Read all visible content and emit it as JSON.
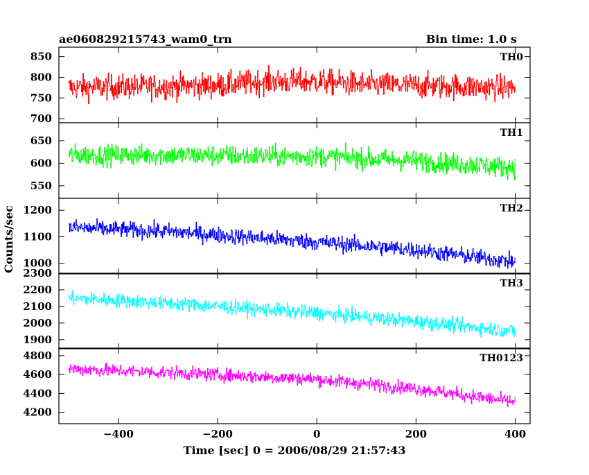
{
  "header": {
    "title": "ae060829215743_wam0_trn",
    "bin_time": "Bin time: 1.0 s"
  },
  "chart_data": {
    "type": "line",
    "xlabel": "Time [sec] 0 = 2006/08/29 21:57:43",
    "ylabel": "Counts/sec",
    "xlim": [
      -520,
      430
    ],
    "x_ticks": [
      -400,
      -200,
      0,
      200,
      400
    ],
    "x_tick_labels": [
      "−400",
      "−200",
      "0",
      "200",
      "400"
    ],
    "x_data_range": [
      -500,
      400
    ],
    "bin_seconds": 1.0,
    "grid": false,
    "panels": [
      {
        "name": "TH0",
        "color": "#ff0000",
        "ylim": [
          690,
          873
        ],
        "yticks": [
          700,
          750,
          800,
          850
        ],
        "trend": [
          [
            -500,
            775
          ],
          [
            -200,
            780
          ],
          [
            -100,
            790
          ],
          [
            0,
            790
          ],
          [
            100,
            782
          ],
          [
            400,
            775
          ]
        ],
        "noise_amplitude": 40
      },
      {
        "name": "TH1",
        "color": "#00ff00",
        "ylim": [
          522,
          690
        ],
        "yticks": [
          550,
          600,
          650
        ],
        "trend": [
          [
            -500,
            618
          ],
          [
            -300,
            618
          ],
          [
            0,
            615
          ],
          [
            200,
            605
          ],
          [
            400,
            590
          ]
        ],
        "noise_amplitude": 30
      },
      {
        "name": "TH2",
        "color": "#0000ff",
        "ylim": [
          960,
          1245
        ],
        "yticks": [
          1000,
          1100,
          1200
        ],
        "trend": [
          [
            -500,
            1135
          ],
          [
            -300,
            1120
          ],
          [
            0,
            1080
          ],
          [
            200,
            1050
          ],
          [
            400,
            1005
          ]
        ],
        "noise_amplitude": 40
      },
      {
        "name": "TH3",
        "color": "#00ffff",
        "ylim": [
          1845,
          2300
        ],
        "yticks": [
          1900,
          2000,
          2100,
          2200,
          2300
        ],
        "trend": [
          [
            -500,
            2150
          ],
          [
            -300,
            2120
          ],
          [
            0,
            2060
          ],
          [
            200,
            2010
          ],
          [
            400,
            1950
          ]
        ],
        "noise_amplitude": 55
      },
      {
        "name": "TH0123",
        "color": "#ff00ff",
        "ylim": [
          4080,
          4880
        ],
        "yticks": [
          4200,
          4400,
          4600,
          4800
        ],
        "trend": [
          [
            -500,
            4660
          ],
          [
            -300,
            4620
          ],
          [
            0,
            4550
          ],
          [
            200,
            4450
          ],
          [
            400,
            4310
          ]
        ],
        "noise_amplitude": 90
      }
    ]
  }
}
